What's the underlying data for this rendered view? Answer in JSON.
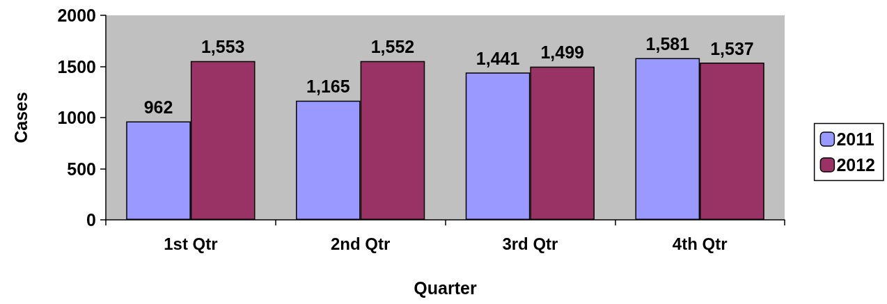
{
  "chart_data": {
    "type": "bar",
    "xlabel": "Quarter",
    "ylabel": "Cases",
    "categories": [
      "1st Qtr",
      "2nd Qtr",
      "3rd Qtr",
      "4th Qtr"
    ],
    "series": [
      {
        "name": "2011",
        "color": "#9999ff",
        "values": [
          962,
          1165,
          1441,
          1581
        ],
        "value_labels": [
          "962",
          "1,165",
          "1,441",
          "1,581"
        ]
      },
      {
        "name": "2012",
        "color": "#993366",
        "values": [
          1553,
          1552,
          1499,
          1537
        ],
        "value_labels": [
          "1,553",
          "1,552",
          "1,499",
          "1,537"
        ]
      }
    ],
    "ylim": [
      0,
      2000
    ],
    "yticks": [
      0,
      500,
      1000,
      1500,
      2000
    ],
    "grid": false,
    "legend": "right"
  }
}
